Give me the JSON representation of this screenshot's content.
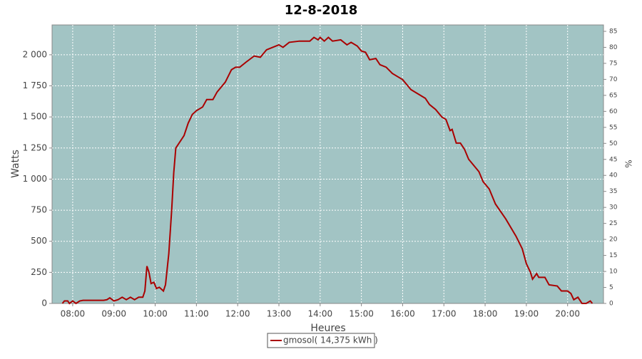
{
  "chart_data": {
    "type": "line",
    "title": "12-8-2018",
    "x_label": "Heures",
    "y_label": "Watts",
    "y2_label": "%",
    "x": [
      7.75,
      7.8,
      7.88,
      7.92,
      8.0,
      8.08,
      8.17,
      8.25,
      8.5,
      8.75,
      8.83,
      8.9,
      9.0,
      9.1,
      9.2,
      9.3,
      9.4,
      9.5,
      9.6,
      9.7,
      9.75,
      9.8,
      9.85,
      9.9,
      9.97,
      10.03,
      10.1,
      10.2,
      10.25,
      10.33,
      10.4,
      10.45,
      10.5,
      10.6,
      10.7,
      10.8,
      10.9,
      11.0,
      11.15,
      11.25,
      11.4,
      11.5,
      11.7,
      11.85,
      11.95,
      12.05,
      12.2,
      12.4,
      12.55,
      12.7,
      12.85,
      13.0,
      13.1,
      13.25,
      13.5,
      13.75,
      13.85,
      13.95,
      14.0,
      14.1,
      14.2,
      14.3,
      14.5,
      14.65,
      14.75,
      14.9,
      15.0,
      15.1,
      15.2,
      15.35,
      15.45,
      15.6,
      15.75,
      15.9,
      16.0,
      16.1,
      16.2,
      16.4,
      16.55,
      16.65,
      16.8,
      16.95,
      17.05,
      17.15,
      17.2,
      17.3,
      17.4,
      17.5,
      17.6,
      17.75,
      17.85,
      17.95,
      18.05,
      18.1,
      18.25,
      18.5,
      18.75,
      18.9,
      19.0,
      19.1,
      19.15,
      19.25,
      19.3,
      19.45,
      19.55,
      19.75,
      19.85,
      20.0,
      20.08,
      20.15,
      20.25,
      20.35,
      20.45,
      20.55,
      20.6
    ],
    "series": [
      {
        "name": "gmosol( 14,375 kWh )",
        "color": "#aa0000",
        "values": [
          0,
          20,
          20,
          0,
          20,
          0,
          20,
          25,
          25,
          25,
          30,
          45,
          20,
          30,
          50,
          30,
          50,
          30,
          50,
          50,
          100,
          300,
          250,
          160,
          170,
          120,
          130,
          100,
          150,
          400,
          750,
          1050,
          1250,
          1300,
          1350,
          1450,
          1520,
          1550,
          1580,
          1640,
          1640,
          1700,
          1780,
          1880,
          1900,
          1900,
          1940,
          1990,
          1980,
          2040,
          2060,
          2080,
          2060,
          2100,
          2110,
          2110,
          2140,
          2120,
          2140,
          2110,
          2140,
          2110,
          2120,
          2080,
          2100,
          2070,
          2030,
          2020,
          1960,
          1970,
          1920,
          1900,
          1850,
          1820,
          1800,
          1760,
          1720,
          1680,
          1650,
          1600,
          1560,
          1500,
          1480,
          1390,
          1400,
          1290,
          1290,
          1240,
          1160,
          1100,
          1060,
          980,
          940,
          920,
          800,
          680,
          540,
          440,
          320,
          250,
          195,
          240,
          210,
          210,
          150,
          140,
          100,
          100,
          80,
          30,
          50,
          0,
          0,
          20,
          0
        ]
      }
    ],
    "xlim": [
      7.5,
      20.87
    ],
    "xticks": [
      {
        "value": 8,
        "label": "08:00"
      },
      {
        "value": 9,
        "label": "09:00"
      },
      {
        "value": 10,
        "label": "10:00"
      },
      {
        "value": 11,
        "label": "11:00"
      },
      {
        "value": 12,
        "label": "12:00"
      },
      {
        "value": 13,
        "label": "13:00"
      },
      {
        "value": 14,
        "label": "14:00"
      },
      {
        "value": 15,
        "label": "15:00"
      },
      {
        "value": 16,
        "label": "16:00"
      },
      {
        "value": 17,
        "label": "17:00"
      },
      {
        "value": 18,
        "label": "18:00"
      },
      {
        "value": 19,
        "label": "19:00"
      },
      {
        "value": 20,
        "label": "20:00"
      }
    ],
    "ylim": [
      0,
      2240
    ],
    "yticks": [
      0,
      250,
      500,
      750,
      {
        "value": 1000,
        "label": "1 000"
      },
      {
        "value": 1250,
        "label": "1 250"
      },
      {
        "value": 1500,
        "label": "1 500"
      },
      {
        "value": 1750,
        "label": "1 750"
      },
      {
        "value": 2000,
        "label": "2 000"
      }
    ],
    "y2lim": [
      0,
      87
    ],
    "y2ticks": [
      0,
      5,
      10,
      15,
      20,
      25,
      30,
      35,
      40,
      45,
      50,
      55,
      60,
      65,
      70,
      75,
      80,
      85
    ],
    "grid": true,
    "background": "#a2c4c4",
    "legend": "bottom"
  }
}
